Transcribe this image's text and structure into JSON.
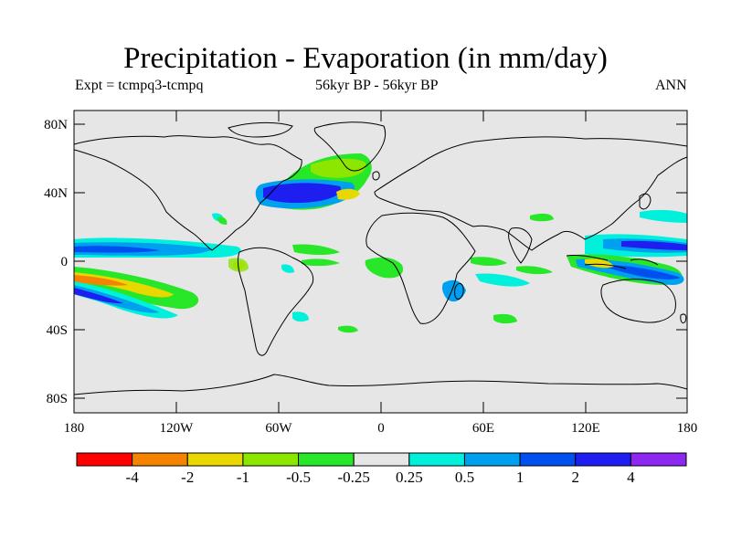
{
  "header": {
    "title": "Precipitation - Evaporation (in mm/day)",
    "expt": "Expt = tcmpq3-tcmpq",
    "period": "56kyr BP - 56kyr BP",
    "season": "ANN"
  },
  "map": {
    "background": "#e6e6e6",
    "coast_color": "#000000",
    "lat_labels": [
      "80N",
      "40N",
      "0",
      "40S",
      "80S"
    ],
    "lon_labels": [
      "180",
      "120W",
      "60W",
      "0",
      "60E",
      "120E",
      "180"
    ]
  },
  "colorbar": {
    "colors": [
      "#ff0000",
      "#f58200",
      "#e8d800",
      "#8ce600",
      "#28e628",
      "#e6e6e6",
      "#00f0dc",
      "#00a0f0",
      "#0050f0",
      "#1e1ef0",
      "#8c28f0"
    ],
    "labels": [
      "-4",
      "-2",
      "-1",
      "-0.5",
      "-0.25",
      "0.25",
      "0.5",
      "1",
      "2",
      "4"
    ]
  }
}
